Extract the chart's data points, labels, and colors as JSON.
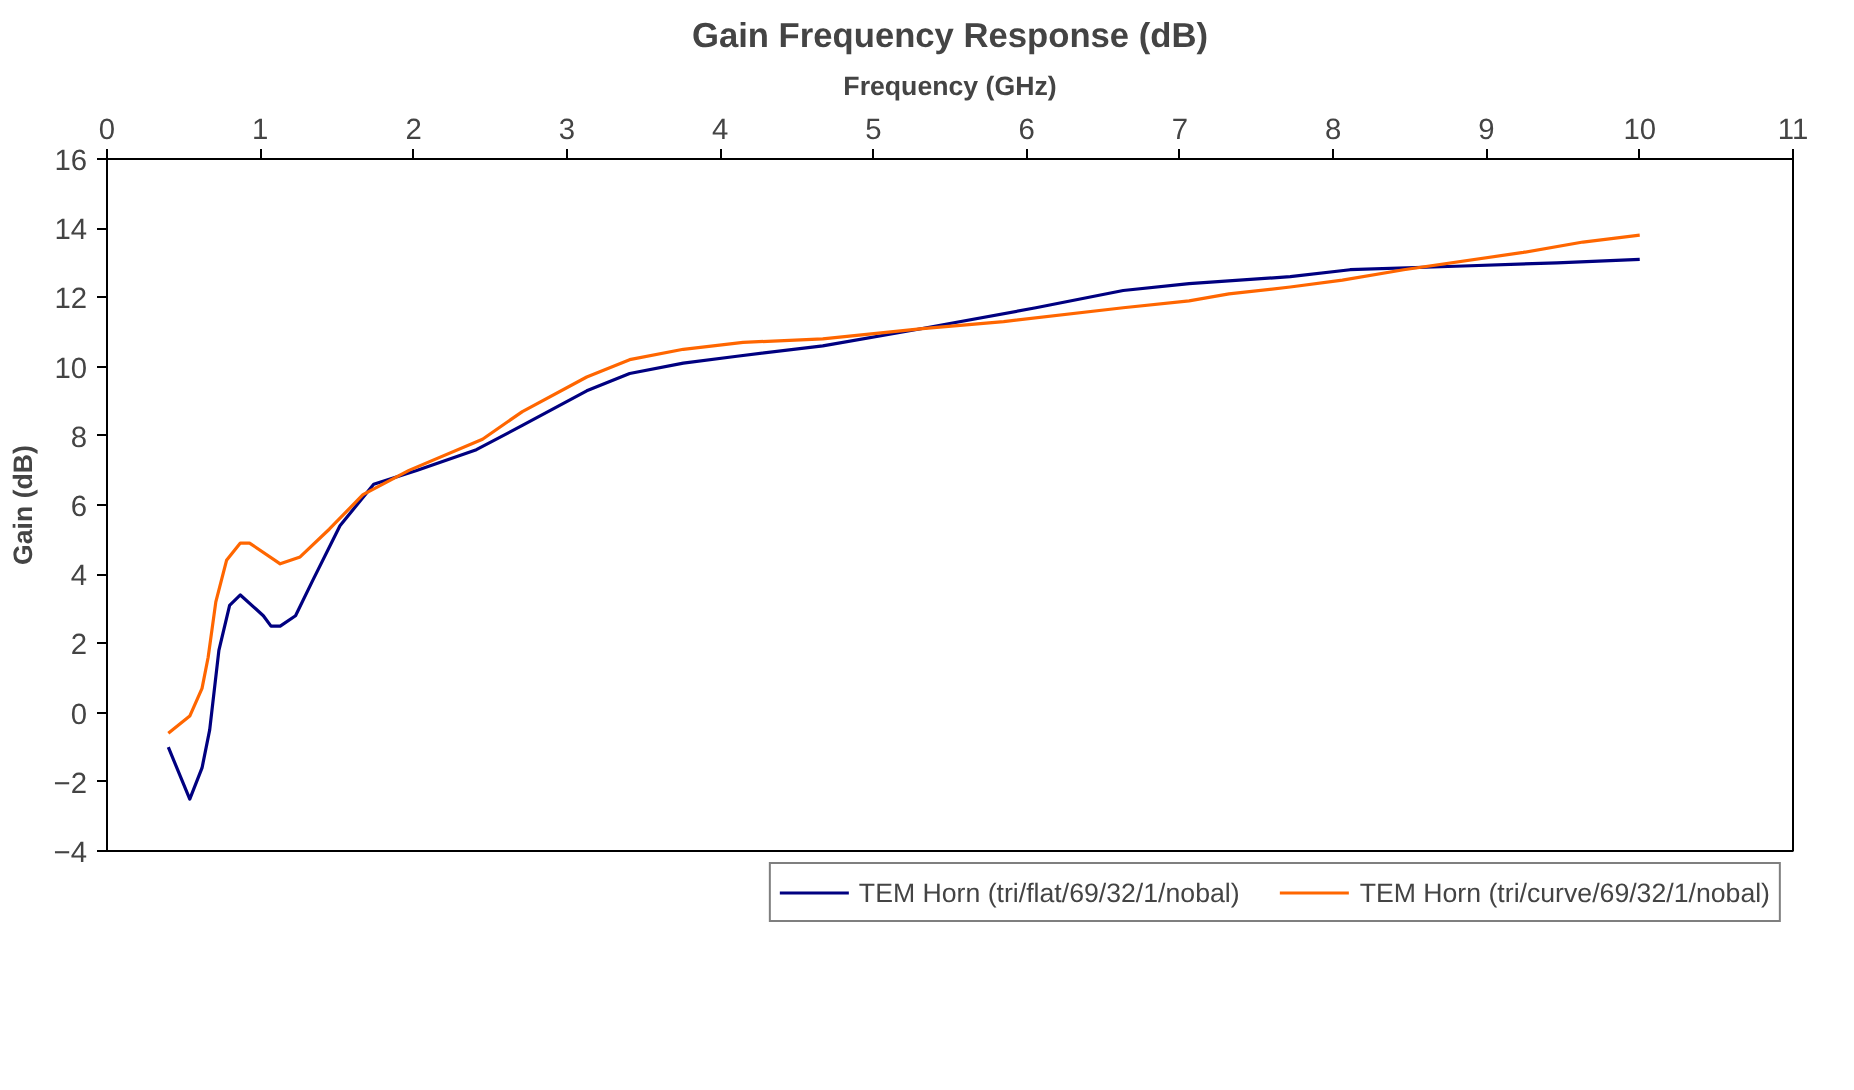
{
  "chart_data": {
    "type": "line",
    "title": "Gain Frequency Response (dB)",
    "xlabel": "Frequency (GHz)",
    "ylabel": "Gain (dB)",
    "xlim": [
      0,
      11
    ],
    "xticks": [
      0,
      1,
      2,
      3,
      4,
      5,
      6,
      7,
      8,
      9,
      10,
      11
    ],
    "ylim": [
      -4,
      16
    ],
    "yticks": [
      -4,
      -2,
      0,
      2,
      4,
      6,
      8,
      10,
      12,
      14,
      16
    ],
    "grid": false,
    "legend": "bottom",
    "marker": "none",
    "line_style": "solid",
    "series": [
      {
        "name": "TEM Horn (tri/flat/69/32/1/nobal)",
        "color": "#000080",
        "x": [
          0.4,
          0.54,
          0.62,
          0.67,
          0.73,
          0.8,
          0.87,
          0.97,
          1.02,
          1.07,
          1.13,
          1.23,
          1.34,
          1.52,
          1.74,
          2.02,
          2.41,
          2.71,
          3.13,
          3.41,
          3.76,
          4.11,
          4.67,
          5.32,
          6.06,
          6.63,
          7.06,
          7.72,
          8.11,
          8.8,
          9.46,
          10.0
        ],
        "values": [
          -1.0,
          -2.5,
          -1.6,
          -0.5,
          1.8,
          3.1,
          3.4,
          3.0,
          2.8,
          2.5,
          2.5,
          2.8,
          3.8,
          5.4,
          6.6,
          7.0,
          7.6,
          8.3,
          9.3,
          9.8,
          10.1,
          10.3,
          10.6,
          11.1,
          11.7,
          12.2,
          12.4,
          12.6,
          12.8,
          12.9,
          13.0,
          13.1
        ]
      },
      {
        "name": "TEM Horn (tri/curve/69/32/1/nobal)",
        "color": "#ff6600",
        "x": [
          0.4,
          0.54,
          0.62,
          0.66,
          0.71,
          0.78,
          0.87,
          0.93,
          1.13,
          1.26,
          1.45,
          1.67,
          1.97,
          2.45,
          2.71,
          3.13,
          3.41,
          3.76,
          4.15,
          4.67,
          5.32,
          5.85,
          6.63,
          7.06,
          7.32,
          7.72,
          8.06,
          8.46,
          9.24,
          9.63,
          10.0
        ],
        "values": [
          -0.6,
          -0.1,
          0.7,
          1.6,
          3.2,
          4.4,
          4.9,
          4.9,
          4.3,
          4.5,
          5.3,
          6.3,
          7.0,
          7.9,
          8.7,
          9.7,
          10.2,
          10.5,
          10.7,
          10.8,
          11.1,
          11.3,
          11.7,
          11.9,
          12.1,
          12.3,
          12.5,
          12.8,
          13.3,
          13.6,
          13.8
        ]
      }
    ]
  }
}
